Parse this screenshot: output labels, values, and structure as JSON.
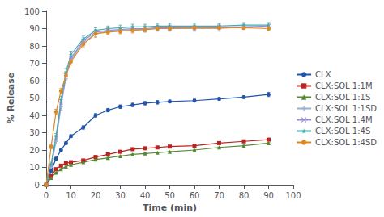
{
  "chart_data": {
    "type": "line",
    "xlabel": "Time (min)",
    "ylabel": "% Release",
    "xlim": [
      0,
      100
    ],
    "ylim": [
      0,
      100
    ],
    "xticks": [
      0,
      10,
      20,
      30,
      40,
      50,
      60,
      70,
      80,
      90,
      100
    ],
    "yticks": [
      0,
      10,
      20,
      30,
      40,
      50,
      60,
      70,
      80,
      90,
      100
    ],
    "grid": false,
    "legend": "right",
    "series": [
      {
        "name": "CLX",
        "color": "#2255aa",
        "marker": "circle",
        "x": [
          0,
          2,
          4,
          6,
          8,
          10,
          15,
          20,
          25,
          30,
          35,
          40,
          45,
          50,
          60,
          70,
          80,
          90
        ],
        "values": [
          0,
          8,
          15,
          20,
          24,
          28,
          33,
          40,
          43,
          45,
          46,
          47,
          47.5,
          48,
          48.5,
          49.5,
          50.5,
          52
        ],
        "yerr": [
          0,
          0.5,
          0.8,
          0.8,
          0.8,
          0.8,
          1.0,
          1.0,
          1.0,
          1.0,
          1.0,
          1.0,
          1.0,
          0.8,
          0.8,
          0.8,
          0.8,
          1.2
        ]
      },
      {
        "name": "CLX:SOL 1:1M",
        "color": "#bb2222",
        "marker": "square",
        "x": [
          0,
          2,
          4,
          6,
          8,
          10,
          15,
          20,
          25,
          30,
          35,
          40,
          45,
          50,
          60,
          70,
          80,
          90
        ],
        "values": [
          0,
          5,
          9,
          11,
          12.5,
          13,
          14,
          16,
          17.5,
          19,
          20.5,
          21,
          21.5,
          22,
          22.5,
          24,
          25,
          26
        ],
        "yerr": [
          0,
          0.3,
          0.3,
          0.3,
          0.3,
          0.3,
          0.3,
          0.3,
          0.3,
          0.3,
          0.3,
          0.3,
          0.3,
          0.3,
          0.3,
          0.3,
          0.3,
          0.4
        ]
      },
      {
        "name": "CLX:SOL 1:1S",
        "color": "#558833",
        "marker": "triangle",
        "x": [
          0,
          2,
          4,
          6,
          8,
          10,
          15,
          20,
          25,
          30,
          35,
          40,
          45,
          50,
          60,
          70,
          80,
          90
        ],
        "values": [
          0,
          4,
          7,
          9,
          10.5,
          11.5,
          13,
          14.5,
          15.5,
          16.5,
          17.5,
          18,
          18.5,
          19,
          20,
          21.5,
          22.5,
          24
        ],
        "yerr": [
          0,
          0.3,
          0.3,
          0.3,
          0.3,
          0.3,
          0.3,
          0.3,
          0.3,
          0.3,
          0.3,
          0.3,
          0.3,
          0.3,
          0.3,
          0.3,
          0.3,
          0.4
        ]
      },
      {
        "name": "CLX:SOL 1:1SD",
        "color": "#9bafd4",
        "marker": "plus",
        "x": [
          0,
          2,
          4,
          6,
          8,
          10,
          15,
          20,
          25,
          30,
          35,
          40,
          45,
          50,
          60,
          70,
          80,
          90
        ],
        "values": [
          0,
          10,
          25,
          45,
          62,
          72,
          82,
          87,
          88.5,
          89,
          89.5,
          89.5,
          90,
          90,
          90,
          90,
          91,
          91
        ],
        "yerr": [
          0,
          1.0,
          1.5,
          2.0,
          2.0,
          2.0,
          2.0,
          1.5,
          1.5,
          1.5,
          1.5,
          1.5,
          1.5,
          1.5,
          1.5,
          1.5,
          1.5,
          1.5
        ]
      },
      {
        "name": "CLX:SOL 1:4M",
        "color": "#9988cc",
        "marker": "x",
        "x": [
          0,
          2,
          4,
          6,
          8,
          10,
          15,
          20,
          25,
          30,
          35,
          40,
          45,
          50,
          60,
          70,
          80,
          90
        ],
        "values": [
          0,
          11,
          27,
          47,
          63,
          73,
          83,
          88,
          89,
          89.5,
          90,
          90,
          90.5,
          90.5,
          90.5,
          91,
          91,
          91.5
        ],
        "yerr": [
          0,
          1.0,
          1.5,
          2.0,
          2.0,
          2.0,
          2.0,
          1.5,
          1.5,
          1.5,
          1.5,
          1.5,
          1.5,
          1.5,
          1.5,
          1.5,
          1.5,
          1.5
        ]
      },
      {
        "name": "CLX:SOL 1:4S",
        "color": "#44aaaa",
        "marker": "star",
        "x": [
          0,
          2,
          4,
          6,
          8,
          10,
          15,
          20,
          25,
          30,
          35,
          40,
          45,
          50,
          60,
          70,
          80,
          90
        ],
        "values": [
          0,
          12,
          28,
          49,
          65,
          75,
          84,
          89,
          90,
          90.5,
          91,
          91,
          91.5,
          91.5,
          91.5,
          91.5,
          92,
          92
        ],
        "yerr": [
          0,
          1.0,
          1.5,
          2.0,
          2.0,
          2.0,
          2.0,
          1.5,
          1.5,
          1.5,
          1.5,
          1.5,
          1.5,
          1.5,
          1.5,
          1.5,
          1.5,
          1.5
        ]
      },
      {
        "name": "CLX:SOL 1:4SD",
        "color": "#dd8822",
        "marker": "circle",
        "x": [
          0,
          2,
          4,
          6,
          8,
          10,
          15,
          20,
          25,
          30,
          35,
          40,
          45,
          50,
          60,
          70,
          80,
          90
        ],
        "values": [
          0,
          22,
          42,
          54,
          63,
          71,
          81,
          87,
          88,
          88.5,
          89,
          89.5,
          90,
          90,
          90.5,
          90.5,
          90.5,
          90
        ],
        "yerr": [
          0,
          1.2,
          1.5,
          1.5,
          2.0,
          2.0,
          2.0,
          2.0,
          1.5,
          1.5,
          1.5,
          1.5,
          1.0,
          1.0,
          1.0,
          1.0,
          1.0,
          1.0
        ]
      }
    ]
  }
}
